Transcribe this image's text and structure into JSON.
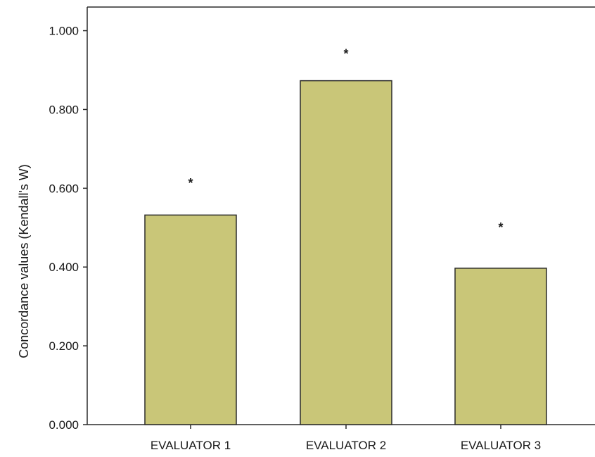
{
  "chart_data": {
    "type": "bar",
    "categories": [
      "EVALUATOR 1",
      "EVALUATOR 2",
      "EVALUATOR 3"
    ],
    "values": [
      0.532,
      0.873,
      0.397
    ],
    "significance_markers": [
      "*",
      "*",
      "*"
    ],
    "significance_positions": [
      0.615,
      0.943,
      0.502
    ],
    "ylabel": "Concordance values (Kendall's W)",
    "xlabel": "",
    "ylim": [
      0.0,
      1.06
    ],
    "yticks": [
      "0.000",
      "0.200",
      "0.400",
      "0.600",
      "0.800",
      "1.000"
    ],
    "ytick_values": [
      0.0,
      0.2,
      0.4,
      0.6,
      0.8,
      1.0
    ],
    "grid": false,
    "colors": {
      "bar_fill": "#c9c678",
      "bar_stroke": "#2b2b2b",
      "axis": "#2b2b2b",
      "marker": "#1a1a3a"
    }
  }
}
